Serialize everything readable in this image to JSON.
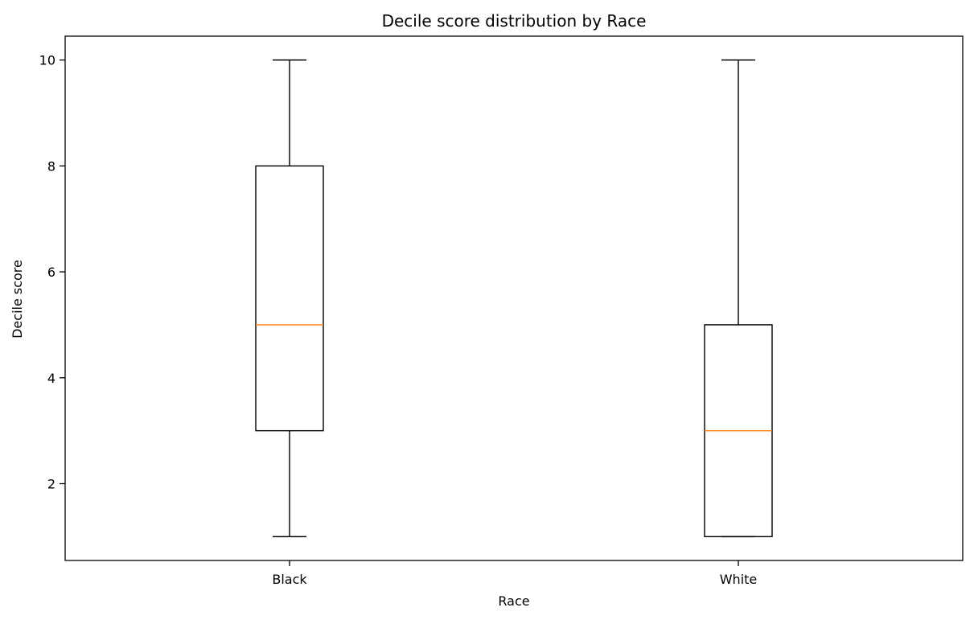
{
  "chart_data": {
    "type": "boxplot",
    "title": "Decile score distribution by Race",
    "xlabel": "Race",
    "ylabel": "Decile score",
    "ylim": [
      0.55,
      10.45
    ],
    "yticks": [
      2,
      4,
      6,
      8,
      10
    ],
    "grid": false,
    "legend": "none",
    "categories": [
      "Black",
      "White"
    ],
    "boxes": [
      {
        "category": "Black",
        "whisker_low": 1,
        "q1": 3,
        "median": 5,
        "q3": 8,
        "whisker_high": 10
      },
      {
        "category": "White",
        "whisker_low": 1,
        "q1": 1,
        "median": 3,
        "q3": 5,
        "whisker_high": 10
      }
    ],
    "colors": {
      "box": "#000000",
      "median": "#ff7f0e",
      "axis": "#000000"
    }
  }
}
